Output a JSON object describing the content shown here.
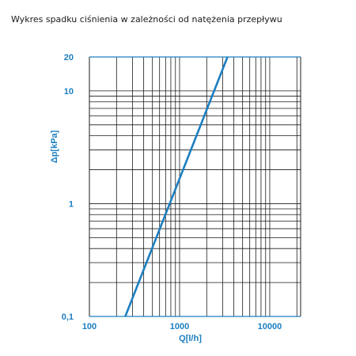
{
  "page": {
    "title": "Wykres spadku ciśnienia w zależności od natężenia przepływu"
  },
  "colors": {
    "accent": "#1c7fc0",
    "grid": "#1a1a1a",
    "axis_frame": "#1c7fc0"
  },
  "chart_data": {
    "type": "line",
    "title": "Wykres spadku ciśnienia w zależności od natężenia przepływu",
    "xlabel": "Q[l/h]",
    "ylabel": "Δp[kPa]",
    "x_scale": "log",
    "y_scale": "log",
    "xlim": [
      100,
      22000
    ],
    "ylim": [
      0.1,
      20
    ],
    "grid": true,
    "x_tick_labels": [
      {
        "value": 100,
        "label": "100"
      },
      {
        "value": 1000,
        "label": "1000"
      },
      {
        "value": 10000,
        "label": "10000"
      }
    ],
    "y_tick_labels": [
      {
        "value": 0.1,
        "label": "0,1"
      },
      {
        "value": 1,
        "label": "1"
      },
      {
        "value": 10,
        "label": "10"
      },
      {
        "value": 20,
        "label": "20"
      }
    ],
    "series": [
      {
        "x": [
          250,
          3400
        ],
        "y": [
          0.1,
          20
        ]
      }
    ]
  }
}
